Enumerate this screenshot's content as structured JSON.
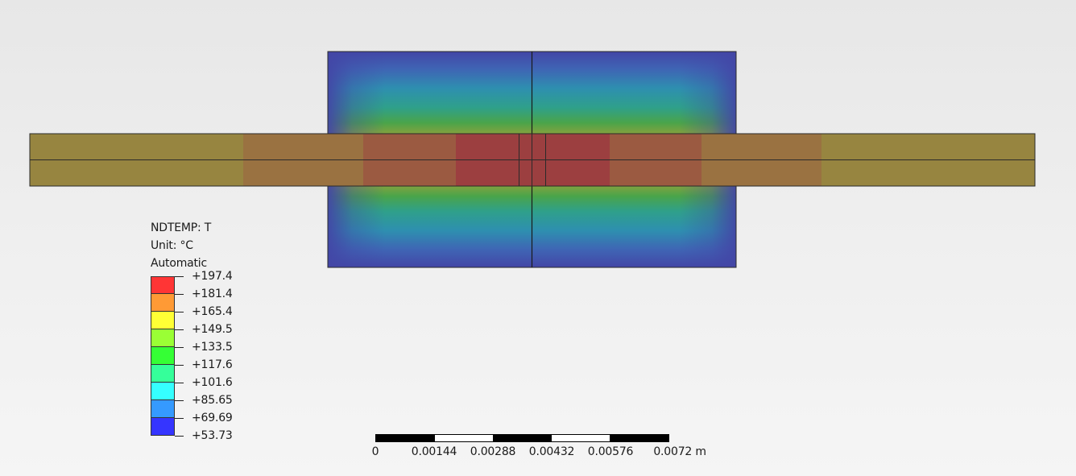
{
  "legend": {
    "title": "NDTEMP: T",
    "unit": "Unit: °C",
    "mode": "Automatic",
    "entries": [
      {
        "label": "+197.4",
        "color": "#ff3535"
      },
      {
        "label": "+181.4",
        "color": "#ff9a35"
      },
      {
        "label": "+165.4",
        "color": "#ffff35"
      },
      {
        "label": "+149.5",
        "color": "#9aff35"
      },
      {
        "label": "+133.5",
        "color": "#35ff35"
      },
      {
        "label": "+117.6",
        "color": "#35ff9a"
      },
      {
        "label": "+101.6",
        "color": "#35ffff"
      },
      {
        "label": "+85.65",
        "color": "#359aff"
      },
      {
        "label": "+69.69",
        "color": "#3535ff"
      },
      {
        "label": "+53.73",
        "color": "#3535ff"
      }
    ]
  },
  "scale_bar": {
    "labels": [
      "0",
      "0.00144",
      "0.00288",
      "0.00432",
      "0.00576",
      "0.0072 m"
    ],
    "segment_pattern": [
      "dark",
      "light",
      "dark",
      "light",
      "dark"
    ]
  },
  "colors": {
    "background_top": "#e7e7e7",
    "background_bottom": "#f5f5f5",
    "contour_hot": "#9f3a3a",
    "contour_cold": "#4346a6",
    "plate_base": "#978540",
    "mesh_lines": "#1a1a1a"
  }
}
